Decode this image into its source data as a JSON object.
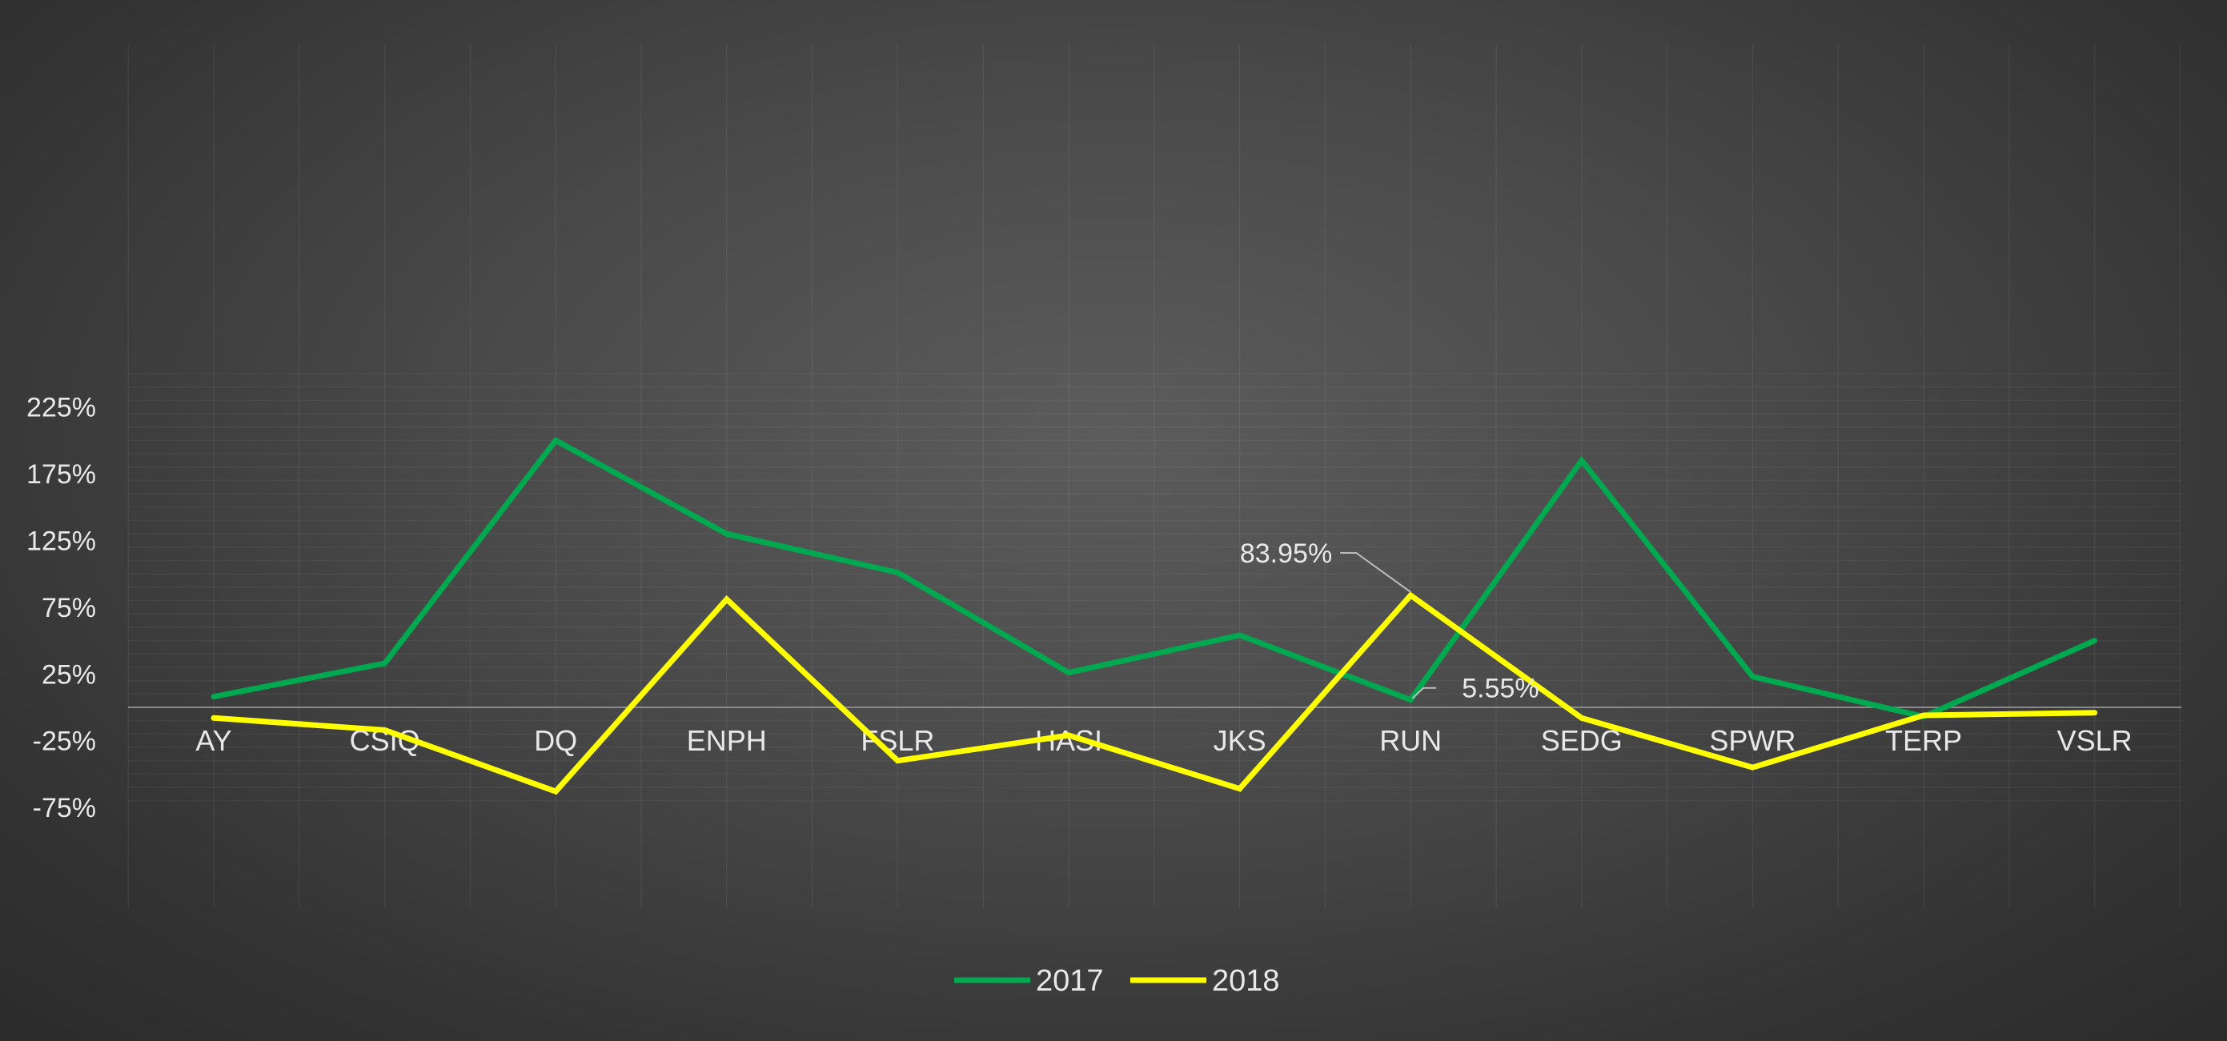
{
  "chart_data": {
    "type": "line",
    "categories": [
      "AY",
      "CSIQ",
      "DQ",
      "ENPH",
      "FSLR",
      "HASI",
      "JKS",
      "RUN",
      "SEDG",
      "SPWR",
      "TERP",
      "VSLR"
    ],
    "series": [
      {
        "name": "2017",
        "color": "#00a84f",
        "values": [
          8,
          33,
          200,
          130,
          101,
          26,
          54,
          5.55,
          185,
          23,
          -7,
          50
        ]
      },
      {
        "name": "2018",
        "color": "#ffff00",
        "values": [
          -8,
          -17,
          -63,
          81,
          -40,
          -21,
          -61,
          83.95,
          -8,
          -45,
          -6,
          -4
        ]
      }
    ],
    "data_labels": [
      {
        "series": "2017",
        "category": "RUN",
        "text": "5.55%"
      },
      {
        "series": "2018",
        "category": "RUN",
        "text": "83.95%"
      }
    ],
    "y_ticks": [
      "225%",
      "175%",
      "125%",
      "75%",
      "25%",
      "-25%",
      "-75%"
    ],
    "y_tick_values": [
      225,
      175,
      125,
      75,
      25,
      -25,
      -75
    ],
    "ylim": [
      -75,
      250
    ],
    "grid": true,
    "legend_position": "bottom",
    "title": "",
    "xlabel": "",
    "ylabel": ""
  }
}
